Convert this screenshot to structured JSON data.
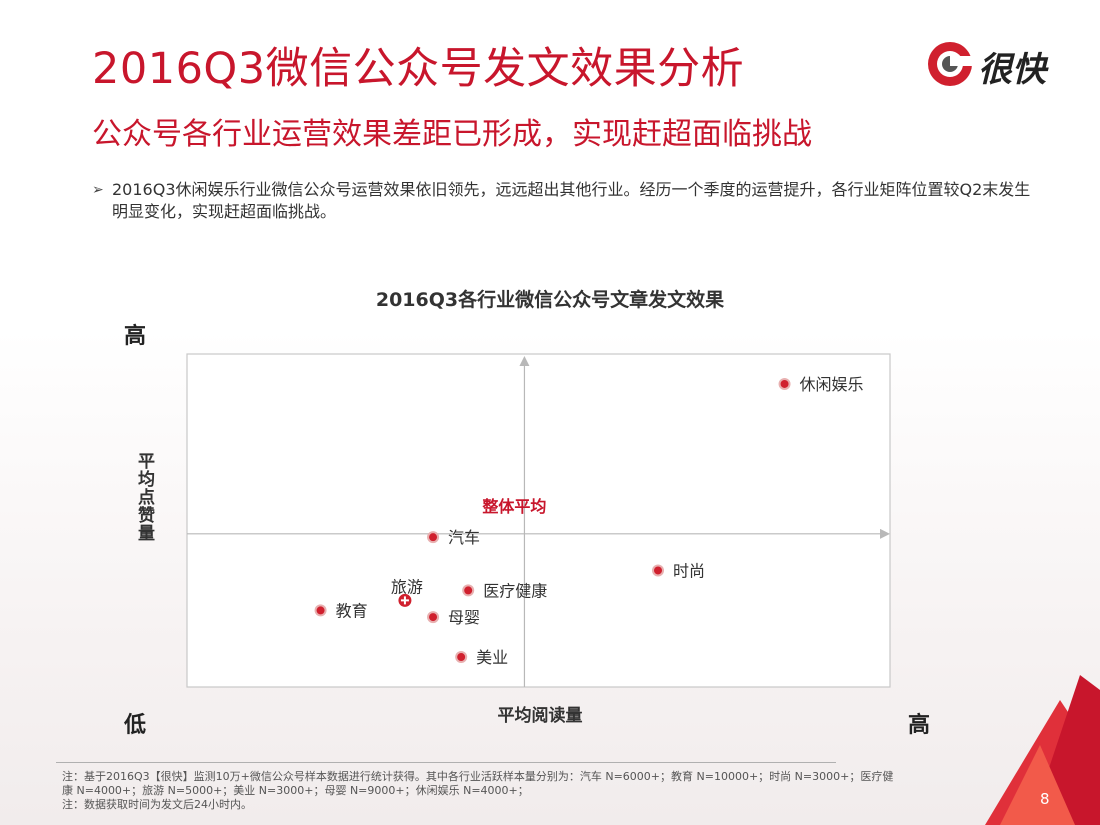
{
  "header": {
    "title": "2016Q3微信公众号发文效果分析",
    "subtitle": "公众号各行业运营效果差距已形成，实现赶超面临挑战",
    "logo_text": "很快"
  },
  "bullet": {
    "marker": "➢",
    "text": "2016Q3休闲娱乐行业微信公众号运营效果依旧领先，远远超出其他行业。经历一个季度的运营提升，各行业矩阵位置较Q2末发生明显变化，实现赶超面临挑战。"
  },
  "chart_data": {
    "type": "scatter",
    "title": "2016Q3各行业微信公众号文章发文效果",
    "xlabel": "平均阅读量",
    "ylabel": "平均点赞量",
    "x_high_label": "高",
    "x_low_label": "低",
    "y_high_label": "高",
    "xlim": [
      0,
      100
    ],
    "ylim": [
      0,
      100
    ],
    "average_label": "整体平均",
    "average_point": {
      "x": 48,
      "y": 46
    },
    "points": [
      {
        "label": "休闲娱乐",
        "x": 85,
        "y": 91,
        "style": "dot"
      },
      {
        "label": "汽车",
        "x": 35,
        "y": 45,
        "style": "dot"
      },
      {
        "label": "时尚",
        "x": 67,
        "y": 35,
        "style": "dot"
      },
      {
        "label": "医疗健康",
        "x": 40,
        "y": 29,
        "style": "dot"
      },
      {
        "label": "旅游",
        "x": 31,
        "y": 26,
        "style": "cross"
      },
      {
        "label": "教育",
        "x": 19,
        "y": 23,
        "style": "dot"
      },
      {
        "label": "母婴",
        "x": 35,
        "y": 21,
        "style": "dot"
      },
      {
        "label": "美业",
        "x": 39,
        "y": 9,
        "style": "dot"
      }
    ],
    "grid": false,
    "marker_color": "#d0202e",
    "average_color": "#c8162c"
  },
  "footnote": {
    "line1": "注：基于2016Q3【很快】监测10万+微信公众号样本数据进行统计获得。其中各行业活跃样本量分别为：汽车 N=6000+；教育 N=10000+；时尚 N=3000+；医疗健",
    "line2": "康 N=4000+；旅游 N=5000+；美业 N=3000+；母婴 N=9000+；休闲娱乐 N=4000+；",
    "line3": "注：数据获取时间为发文后24小时内。"
  },
  "page_number": "8",
  "colors": {
    "brand_red": "#c8162c"
  }
}
